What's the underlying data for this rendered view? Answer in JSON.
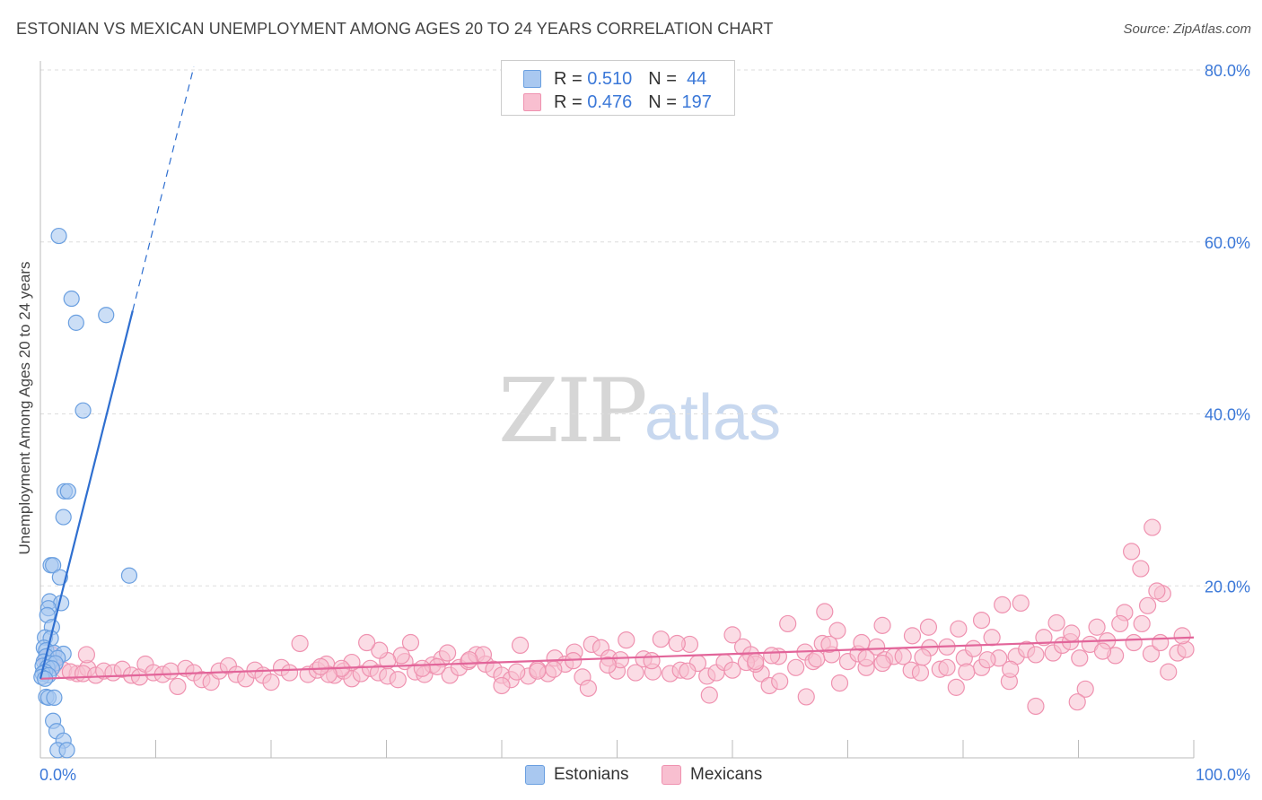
{
  "header": {
    "title": "ESTONIAN VS MEXICAN UNEMPLOYMENT AMONG AGES 20 TO 24 YEARS CORRELATION CHART",
    "source": "Source: ZipAtlas.com"
  },
  "watermark": {
    "zip": "ZIP",
    "atlas": "atlas"
  },
  "legend": {
    "estonians": {
      "r_label": "R =",
      "r_value": "0.510",
      "n_label": "N =",
      "n_value": "44"
    },
    "mexicans": {
      "r_label": "R =",
      "r_value": "0.476",
      "n_label": "N =",
      "n_value": "197"
    }
  },
  "colors": {
    "estonians_fill": "#a9c8f0",
    "estonians_stroke": "#6a9fe0",
    "estonians_line": "#2f6fd0",
    "mexicans_fill": "#f8bfd0",
    "mexicans_stroke": "#ef92b0",
    "mexicans_line": "#e2659a",
    "axis_text": "#3b78d8",
    "grid": "#dddddd"
  },
  "chart_data": {
    "type": "scatter",
    "title": "ESTONIAN VS MEXICAN UNEMPLOYMENT AMONG AGES 20 TO 24 YEARS CORRELATION CHART",
    "xlabel": "",
    "ylabel": "Unemployment Among Ages 20 to 24 years",
    "xlim": [
      0,
      100
    ],
    "ylim": [
      0,
      80
    ],
    "x_tick_labels": [
      "0.0%",
      "100.0%"
    ],
    "y_ticks": [
      20,
      40,
      60,
      80
    ],
    "y_tick_labels": [
      "20.0%",
      "40.0%",
      "60.0%",
      "80.0%"
    ],
    "grid": true,
    "legend_position": "top-center",
    "series": [
      {
        "name": "Estonians",
        "r": 0.51,
        "n": 44,
        "trend": {
          "x0": 0.0,
          "y0": 9.2,
          "x1": 8.0,
          "y1": 52.0,
          "dashed_to_x": 13.3
        },
        "points": [
          [
            1.6,
            60.7
          ],
          [
            2.7,
            53.4
          ],
          [
            3.1,
            50.6
          ],
          [
            5.7,
            51.5
          ],
          [
            3.7,
            40.4
          ],
          [
            2.1,
            31.0
          ],
          [
            2.4,
            31.0
          ],
          [
            2.0,
            28.0
          ],
          [
            7.7,
            21.2
          ],
          [
            0.9,
            22.4
          ],
          [
            1.1,
            22.4
          ],
          [
            1.7,
            21.0
          ],
          [
            0.8,
            18.2
          ],
          [
            1.8,
            18.0
          ],
          [
            0.7,
            17.4
          ],
          [
            0.6,
            16.6
          ],
          [
            1.0,
            15.2
          ],
          [
            0.4,
            14.0
          ],
          [
            0.9,
            13.9
          ],
          [
            0.3,
            12.8
          ],
          [
            0.5,
            12.5
          ],
          [
            1.2,
            12.2
          ],
          [
            2.0,
            12.1
          ],
          [
            0.5,
            11.8
          ],
          [
            1.5,
            11.6
          ],
          [
            0.3,
            11.2
          ],
          [
            0.8,
            11.0
          ],
          [
            1.3,
            11.0
          ],
          [
            0.2,
            10.7
          ],
          [
            0.6,
            10.5
          ],
          [
            1.0,
            10.4
          ],
          [
            0.4,
            10.0
          ],
          [
            0.2,
            9.8
          ],
          [
            0.7,
            9.6
          ],
          [
            0.1,
            9.4
          ],
          [
            0.4,
            9.2
          ],
          [
            0.5,
            7.1
          ],
          [
            0.7,
            7.0
          ],
          [
            1.2,
            7.0
          ],
          [
            1.1,
            4.3
          ],
          [
            1.4,
            3.1
          ],
          [
            2.0,
            2.0
          ],
          [
            1.5,
            0.9
          ],
          [
            2.3,
            0.9
          ]
        ]
      },
      {
        "name": "Mexicans",
        "r": 0.476,
        "n": 197,
        "trend": {
          "x0": 0.0,
          "y0": 9.2,
          "x1": 100.0,
          "y1": 14.0
        },
        "points": [
          [
            0.5,
            11.5
          ],
          [
            1.2,
            10.8
          ],
          [
            2.0,
            10.2
          ],
          [
            3.2,
            9.8
          ],
          [
            4.1,
            10.4
          ],
          [
            1.0,
            12.0
          ],
          [
            4.0,
            12.0
          ],
          [
            2.6,
            10.0
          ],
          [
            3.7,
            9.8
          ],
          [
            4.8,
            9.6
          ],
          [
            5.5,
            10.1
          ],
          [
            6.3,
            9.9
          ],
          [
            7.1,
            10.3
          ],
          [
            7.9,
            9.6
          ],
          [
            8.6,
            9.4
          ],
          [
            9.1,
            10.9
          ],
          [
            9.8,
            9.9
          ],
          [
            10.6,
            9.7
          ],
          [
            11.3,
            10.1
          ],
          [
            11.9,
            8.3
          ],
          [
            12.6,
            10.4
          ],
          [
            13.3,
            9.9
          ],
          [
            14.0,
            9.1
          ],
          [
            14.8,
            8.8
          ],
          [
            15.5,
            10.1
          ],
          [
            16.3,
            10.7
          ],
          [
            17.0,
            9.7
          ],
          [
            17.8,
            9.2
          ],
          [
            18.6,
            10.2
          ],
          [
            19.3,
            9.6
          ],
          [
            20.0,
            8.8
          ],
          [
            20.9,
            10.5
          ],
          [
            21.6,
            9.9
          ],
          [
            22.5,
            13.3
          ],
          [
            23.2,
            9.7
          ],
          [
            24.0,
            10.2
          ],
          [
            24.8,
            10.9
          ],
          [
            25.5,
            9.6
          ],
          [
            26.3,
            10.1
          ],
          [
            27.0,
            9.2
          ],
          [
            27.8,
            9.8
          ],
          [
            28.6,
            10.4
          ],
          [
            29.3,
            9.9
          ],
          [
            30.1,
            9.5
          ],
          [
            31.0,
            9.1
          ],
          [
            31.6,
            11.2
          ],
          [
            32.5,
            10.0
          ],
          [
            33.3,
            9.7
          ],
          [
            34.0,
            10.8
          ],
          [
            34.8,
            11.5
          ],
          [
            35.5,
            9.6
          ],
          [
            36.3,
            10.5
          ],
          [
            37.1,
            11.2
          ],
          [
            37.8,
            12.0
          ],
          [
            38.6,
            10.9
          ],
          [
            39.3,
            10.3
          ],
          [
            40.0,
            9.6
          ],
          [
            40.8,
            9.1
          ],
          [
            41.6,
            13.1
          ],
          [
            42.3,
            9.5
          ],
          [
            43.1,
            10.3
          ],
          [
            44.0,
            9.8
          ],
          [
            44.6,
            11.6
          ],
          [
            45.5,
            10.9
          ],
          [
            46.3,
            12.3
          ],
          [
            47.0,
            9.4
          ],
          [
            47.8,
            13.2
          ],
          [
            48.6,
            12.8
          ],
          [
            49.3,
            11.6
          ],
          [
            50.0,
            10.1
          ],
          [
            50.8,
            13.7
          ],
          [
            51.6,
            9.9
          ],
          [
            52.3,
            11.5
          ],
          [
            53.1,
            10.0
          ],
          [
            53.8,
            13.8
          ],
          [
            54.6,
            9.8
          ],
          [
            55.5,
            10.2
          ],
          [
            56.3,
            13.2
          ],
          [
            57.0,
            11.0
          ],
          [
            57.8,
            9.5
          ],
          [
            58.6,
            9.9
          ],
          [
            59.3,
            11.1
          ],
          [
            60.0,
            10.2
          ],
          [
            60.9,
            12.9
          ],
          [
            61.6,
            12.0
          ],
          [
            62.5,
            9.8
          ],
          [
            63.2,
            8.4
          ],
          [
            64.0,
            11.8
          ],
          [
            64.8,
            15.6
          ],
          [
            65.5,
            10.5
          ],
          [
            66.3,
            12.3
          ],
          [
            67.0,
            11.2
          ],
          [
            67.8,
            13.3
          ],
          [
            68.6,
            12.0
          ],
          [
            69.3,
            8.7
          ],
          [
            70.0,
            11.2
          ],
          [
            70.9,
            12.1
          ],
          [
            71.6,
            10.5
          ],
          [
            72.5,
            12.9
          ],
          [
            73.2,
            11.4
          ],
          [
            74.0,
            11.8
          ],
          [
            74.8,
            11.8
          ],
          [
            75.5,
            10.2
          ],
          [
            76.3,
            9.9
          ],
          [
            77.1,
            12.8
          ],
          [
            78.0,
            10.3
          ],
          [
            78.6,
            10.5
          ],
          [
            79.4,
            8.2
          ],
          [
            80.1,
            11.6
          ],
          [
            80.9,
            12.7
          ],
          [
            81.6,
            10.5
          ],
          [
            82.5,
            14.0
          ],
          [
            83.1,
            11.6
          ],
          [
            84.0,
            8.9
          ],
          [
            84.6,
            11.8
          ],
          [
            85.5,
            12.6
          ],
          [
            86.3,
            12.0
          ],
          [
            87.0,
            14.0
          ],
          [
            87.8,
            12.2
          ],
          [
            88.6,
            13.1
          ],
          [
            89.3,
            13.5
          ],
          [
            90.1,
            11.6
          ],
          [
            91.0,
            13.2
          ],
          [
            91.6,
            15.2
          ],
          [
            92.5,
            13.6
          ],
          [
            93.2,
            11.9
          ],
          [
            94.0,
            16.9
          ],
          [
            94.8,
            13.4
          ],
          [
            95.5,
            15.6
          ],
          [
            96.3,
            12.1
          ],
          [
            97.1,
            13.4
          ],
          [
            97.8,
            10.0
          ],
          [
            98.6,
            12.2
          ],
          [
            99.3,
            12.6
          ],
          [
            99.0,
            14.2
          ],
          [
            90.6,
            8.0
          ],
          [
            89.9,
            6.5
          ],
          [
            86.3,
            6.0
          ],
          [
            84.1,
            10.3
          ],
          [
            82.1,
            11.4
          ],
          [
            80.3,
            10.0
          ],
          [
            78.6,
            12.9
          ],
          [
            76.5,
            11.7
          ],
          [
            73.0,
            11.0
          ],
          [
            71.6,
            11.6
          ],
          [
            69.1,
            14.8
          ],
          [
            68.0,
            17.0
          ],
          [
            66.4,
            7.1
          ],
          [
            64.1,
            8.9
          ],
          [
            62.0,
            10.9
          ],
          [
            61.2,
            11.1
          ],
          [
            60.0,
            14.3
          ],
          [
            58.0,
            7.3
          ],
          [
            56.1,
            10.1
          ],
          [
            55.2,
            13.3
          ],
          [
            53.0,
            11.3
          ],
          [
            50.3,
            11.4
          ],
          [
            49.2,
            10.8
          ],
          [
            47.5,
            8.1
          ],
          [
            46.2,
            11.3
          ],
          [
            44.5,
            10.3
          ],
          [
            43.1,
            10.1
          ],
          [
            41.3,
            10.0
          ],
          [
            40.0,
            8.4
          ],
          [
            38.4,
            12.0
          ],
          [
            37.2,
            11.4
          ],
          [
            35.3,
            12.2
          ],
          [
            34.4,
            10.6
          ],
          [
            33.1,
            10.4
          ],
          [
            32.1,
            13.4
          ],
          [
            31.3,
            11.9
          ],
          [
            30.1,
            11.3
          ],
          [
            29.4,
            12.5
          ],
          [
            28.3,
            13.4
          ],
          [
            27.0,
            11.1
          ],
          [
            26.1,
            10.4
          ],
          [
            25.0,
            9.7
          ],
          [
            24.3,
            10.6
          ],
          [
            97.3,
            19.1
          ],
          [
            96.8,
            19.4
          ],
          [
            94.6,
            24.0
          ],
          [
            95.4,
            22.0
          ],
          [
            96.4,
            26.8
          ],
          [
            96.0,
            17.7
          ],
          [
            93.6,
            15.6
          ],
          [
            92.1,
            12.4
          ],
          [
            89.4,
            14.5
          ],
          [
            88.1,
            15.7
          ],
          [
            85.0,
            18.0
          ],
          [
            83.4,
            17.8
          ],
          [
            81.6,
            16.0
          ],
          [
            79.6,
            15.0
          ],
          [
            77.0,
            15.2
          ],
          [
            75.6,
            14.2
          ],
          [
            73.0,
            15.4
          ],
          [
            71.2,
            13.4
          ],
          [
            68.4,
            13.2
          ],
          [
            67.3,
            11.5
          ],
          [
            63.4,
            11.9
          ],
          [
            62.0,
            11.2
          ]
        ]
      }
    ]
  }
}
